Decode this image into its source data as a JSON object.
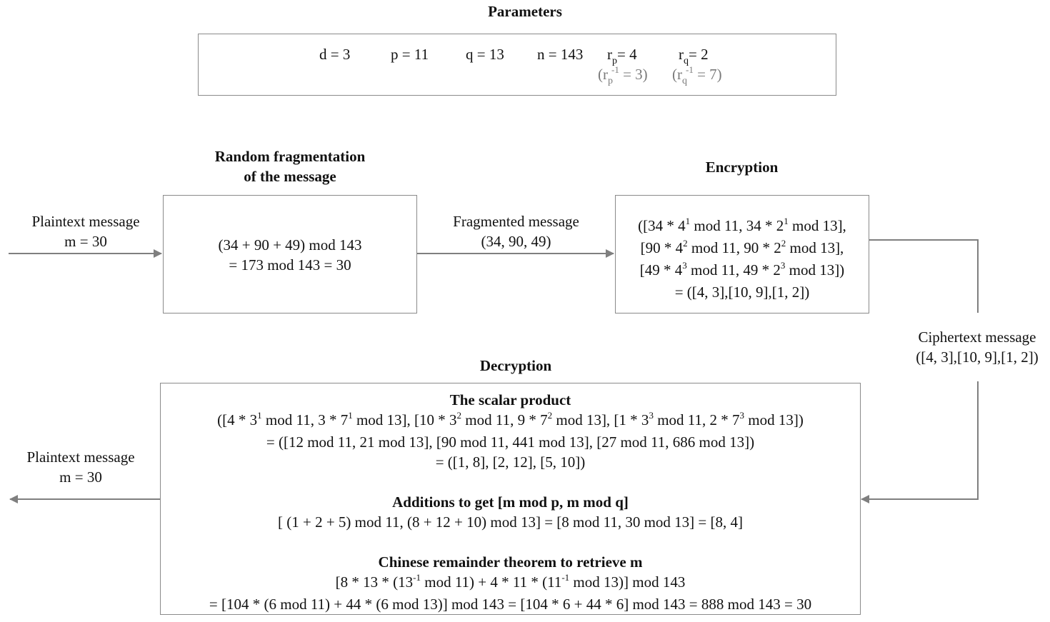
{
  "parameters": {
    "title": "Parameters",
    "d": "d = 3",
    "p": "p = 11",
    "q": "q = 13",
    "n": "n = 143",
    "rp_base": "r",
    "rp_sub": "p",
    "rp_value": "= 4",
    "rq_base": "r",
    "rq_sub": "q",
    "rq_value": "= 2",
    "rp_inv_open": "(r",
    "rp_inv_sub": "p",
    "rp_inv_sup": "-1",
    "rp_inv_value": " = 3)",
    "rq_inv_open": "(r",
    "rq_inv_sub": "q",
    "rq_inv_sup": "-1",
    "rq_inv_value": " = 7)"
  },
  "input": {
    "label": "Plaintext message",
    "value": "m = 30"
  },
  "fragmentation": {
    "title_line1": "Random fragmentation",
    "title_line2": "of the message",
    "line1": "(34 + 90 + 49) mod 143",
    "line2": "= 173 mod 143 = 30"
  },
  "fragmented": {
    "label": "Fragmented message",
    "value": "(34, 90, 49)"
  },
  "encryption": {
    "title": "Encryption",
    "l1": [
      "([34 * 4",
      "1",
      " mod 11, 34 * 2",
      "1",
      " mod 13],"
    ],
    "l2": [
      "[90 * 4",
      "2",
      " mod 11, 90 * 2",
      "2",
      " mod 13],"
    ],
    "l3": [
      "[49 * 4",
      "3",
      " mod 11, 49 * 2",
      "3",
      " mod 13])"
    ],
    "l4": "= ([4, 3],[10, 9],[1, 2])"
  },
  "ciphertext": {
    "label": "Ciphertext message",
    "value": "([4, 3],[10, 9],[1, 2])"
  },
  "decryption": {
    "title": "Decryption",
    "scalar_title": "The scalar product",
    "s1": [
      "([4 * 3",
      "1",
      " mod 11, 3 * 7",
      "1",
      " mod 13], [10 * 3",
      "2",
      " mod 11, 9 * 7",
      "2",
      " mod 13], [1 * 3",
      "3",
      " mod 11, 2 * 7",
      "3",
      " mod 13])"
    ],
    "s2": "= ([12 mod 11, 21 mod 13], [90 mod 11, 441 mod 13], [27 mod 11, 686 mod 13])",
    "s3": "= ([1, 8], [2, 12], [5, 10])",
    "add_title": "Additions to get [m mod p, m mod q]",
    "a1": "[ (1 + 2 + 5) mod 11, (8 + 12 + 10) mod 13] = [8 mod 11, 30 mod 13] = [8, 4]",
    "crt_title": "Chinese remainder theorem to retrieve m",
    "c1": [
      "[8 * 13 * (13",
      "-1",
      " mod 11) + 4 * 11 * (11",
      "-1",
      " mod 13)] mod 143"
    ],
    "c2": "= [104 * (6 mod 11) + 44 * (6 mod 13)] mod 143 = [104 * 6 + 44 * 6] mod 143 = 888 mod 143 = 30"
  },
  "output": {
    "label": "Plaintext message",
    "value": "m = 30"
  },
  "colors": {
    "box_border": "#8a8a8a",
    "arrow": "#7f7f7f",
    "muted_text": "#7a7a7a"
  }
}
